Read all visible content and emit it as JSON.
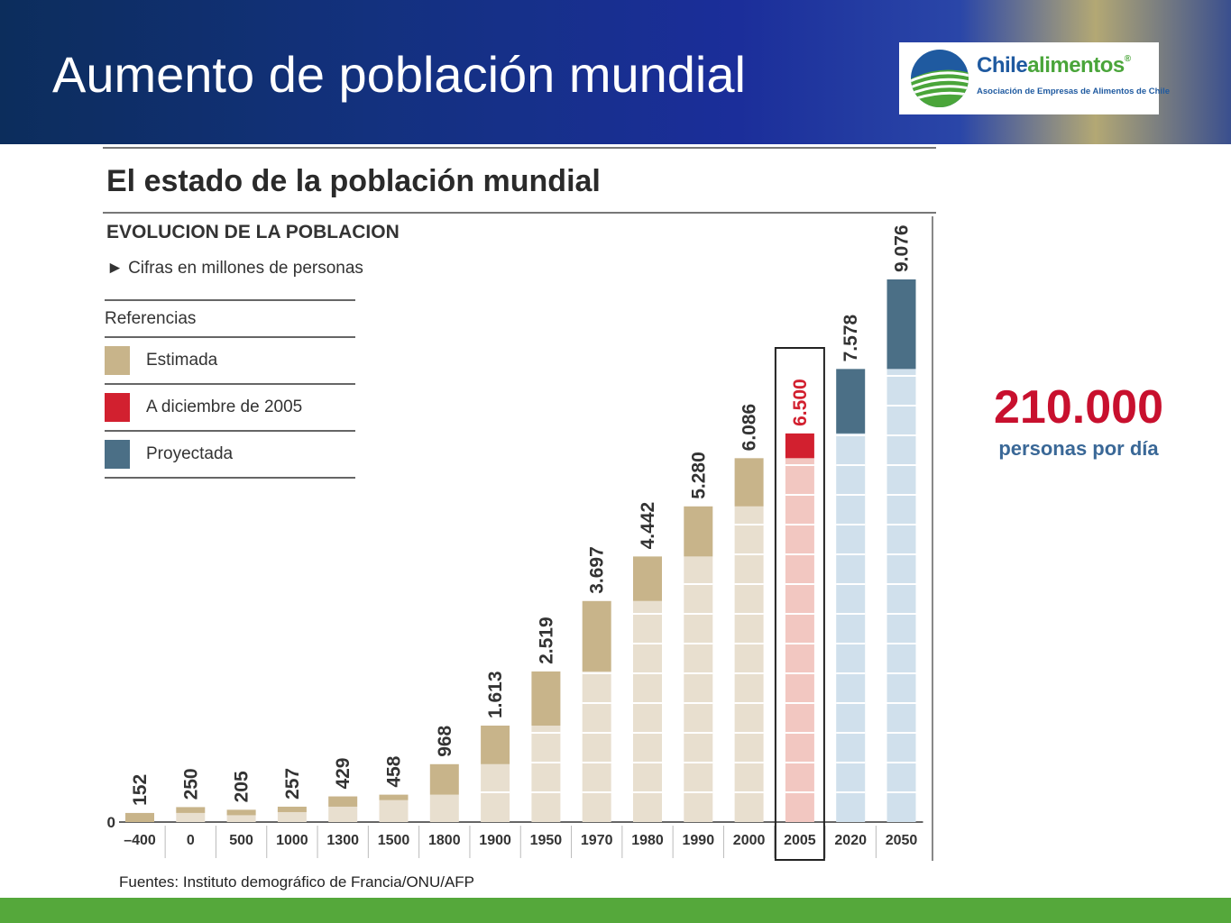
{
  "slide": {
    "title": "Aumento de población mundial",
    "source": "Fuentes: Instituto demográfico de  Francia/ONU/AFP"
  },
  "logo": {
    "name_part1": "Chile",
    "name_part2": "alimentos",
    "registered": "®",
    "tagline": "Asociación de Empresas de Alimentos de Chile"
  },
  "stat": {
    "value": "210.000",
    "label": "personas por día"
  },
  "colors": {
    "estimated": "#c8b48a",
    "estimated_light": "#e8dfcf",
    "current": "#d2202f",
    "current_light": "#f2c7c1",
    "projected": "#4b6f86",
    "projected_light": "#d0e0ec",
    "stat_red": "#c8102e",
    "stat_blue": "#3a6897",
    "footer_green": "#55a83b"
  },
  "chart_data": {
    "type": "bar",
    "title": "El estado de la población mundial",
    "subtitle": "EVOLUCION DE LA POBLACION",
    "note": "► Cifras en millones de personas",
    "legend_title": "Referencias",
    "legend": [
      {
        "label": "Estimada",
        "kind": "estimated"
      },
      {
        "label": "A diciembre de 2005",
        "kind": "current"
      },
      {
        "label": "Proyectada",
        "kind": "projected"
      }
    ],
    "zero_label": "0",
    "ylim": [
      0,
      9076
    ],
    "categories": [
      "–400",
      "0",
      "500",
      "1000",
      "1300",
      "1500",
      "1800",
      "1900",
      "1950",
      "1970",
      "1980",
      "1990",
      "2000",
      "2005",
      "2020",
      "2050"
    ],
    "values": [
      152,
      250,
      205,
      257,
      429,
      458,
      968,
      1613,
      2519,
      3697,
      4442,
      5280,
      6086,
      6500,
      7578,
      9076
    ],
    "value_labels": [
      "152",
      "250",
      "205",
      "257",
      "429",
      "458",
      "968",
      "1.613",
      "2.519",
      "3.697",
      "4.442",
      "5.280",
      "6.086",
      "6.500",
      "7.578",
      "9.076"
    ],
    "kinds": [
      "estimated",
      "estimated",
      "estimated",
      "estimated",
      "estimated",
      "estimated",
      "estimated",
      "estimated",
      "estimated",
      "estimated",
      "estimated",
      "estimated",
      "estimated",
      "current",
      "projected",
      "projected"
    ],
    "highlight_category": "2005"
  }
}
